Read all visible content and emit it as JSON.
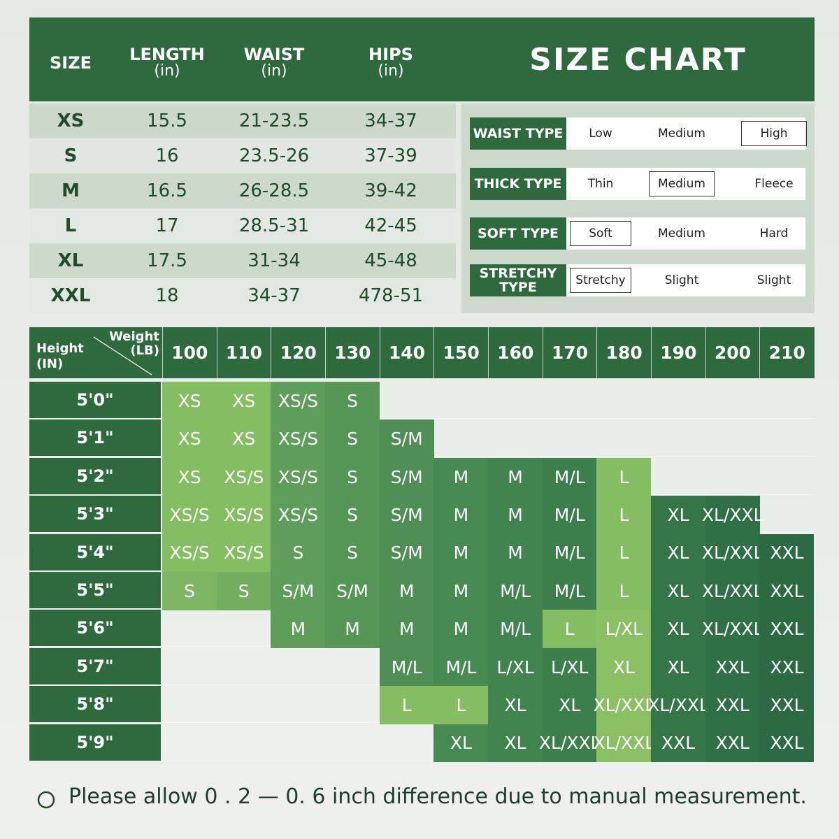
{
  "size_table": {
    "headers": [
      {
        "label": "SIZE"
      },
      {
        "label": "LENGTH",
        "unit": "(in)"
      },
      {
        "label": "WAIST",
        "unit": "(in)"
      },
      {
        "label": "HIPS",
        "unit": "(in)"
      }
    ],
    "rows": [
      [
        "XS",
        "15.5",
        "21-23.5",
        "34-37"
      ],
      [
        "S",
        "16",
        "23.5-26",
        "37-39"
      ],
      [
        "M",
        "16.5",
        "26-28.5",
        "39-42"
      ],
      [
        "L",
        "17",
        "28.5-31",
        "42-45"
      ],
      [
        "XL",
        "17.5",
        "31-34",
        "45-48"
      ],
      [
        "XXL",
        "18",
        "34-37",
        "478-51"
      ]
    ]
  },
  "title": "SIZE CHART",
  "fabric_types": [
    {
      "label": "WAIST TYPE",
      "options": [
        "Low",
        "Medium",
        "High"
      ],
      "selected": 2
    },
    {
      "label": "THICK TYPE",
      "options": [
        "Thin",
        "Medium",
        "Fleece"
      ],
      "selected": 1
    },
    {
      "label": "SOFT TYPE",
      "options": [
        "Soft",
        "Medium",
        "Hard"
      ],
      "selected": 0
    },
    {
      "label": "STRETCHY TYPE",
      "options": [
        "Stretchy",
        "Slight",
        "Slight"
      ],
      "selected": 0
    }
  ],
  "fit_chart": {
    "weight_label": "Weight (LB)",
    "height_label": "Height (IN)",
    "weights": [
      "100",
      "110",
      "120",
      "130",
      "140",
      "150",
      "160",
      "170",
      "180",
      "190",
      "200",
      "210"
    ],
    "rows": [
      {
        "height": "5'0\"",
        "sizes": [
          "XS",
          "XS",
          "XS/S",
          "S",
          null,
          null,
          null,
          null,
          null,
          null,
          null,
          null
        ]
      },
      {
        "height": "5'1\"",
        "sizes": [
          "XS",
          "XS",
          "XS/S",
          "S",
          "S/M",
          null,
          null,
          null,
          null,
          null,
          null,
          null
        ]
      },
      {
        "height": "5'2\"",
        "sizes": [
          "XS",
          "XS/S",
          "XS/S",
          "S",
          "S/M",
          "M",
          "M",
          "M/L",
          "L",
          null,
          null,
          null
        ]
      },
      {
        "height": "5'3\"",
        "sizes": [
          "XS/S",
          "XS/S",
          "XS/S",
          "S",
          "S/M",
          "M",
          "M",
          "M/L",
          "L",
          "XL",
          "XL/XXL",
          null
        ]
      },
      {
        "height": "5'4\"",
        "sizes": [
          "XS/S",
          "XS/S",
          "S",
          "S",
          "S/M",
          "M",
          "M",
          "M/L",
          "L",
          "XL",
          "XL/XXL",
          "XXL"
        ]
      },
      {
        "height": "5'5\"",
        "sizes": [
          "S",
          "S",
          "S/M",
          "S/M",
          "M",
          "M",
          "M/L",
          "M/L",
          "L",
          "XL",
          "XL/XXL",
          "XXL"
        ]
      },
      {
        "height": "5'6\"",
        "sizes": [
          null,
          null,
          "M",
          "M",
          "M",
          "M",
          "M/L",
          "L",
          "L/XL",
          "XL",
          "XL/XXL",
          "XXL"
        ]
      },
      {
        "height": "5'7\"",
        "sizes": [
          null,
          null,
          null,
          null,
          "M/L",
          "M/L",
          "L/XL",
          "L/XL",
          "XL",
          "XL",
          "XXL",
          "XXL"
        ]
      },
      {
        "height": "5'8\"",
        "sizes": [
          null,
          null,
          null,
          null,
          "L",
          "L",
          "XL",
          "XL",
          "XL/XXL",
          "XL/XXL",
          "XXL",
          "XXL"
        ]
      },
      {
        "height": "5'9\"",
        "sizes": [
          null,
          null,
          null,
          null,
          null,
          "XL",
          "XL",
          "XL/XXL",
          "XL/XXL",
          "XXL",
          "XXL",
          "XXL"
        ]
      }
    ]
  },
  "note": "Please allow 0 . 2 — 0. 6 inch difference due to manual measurement."
}
